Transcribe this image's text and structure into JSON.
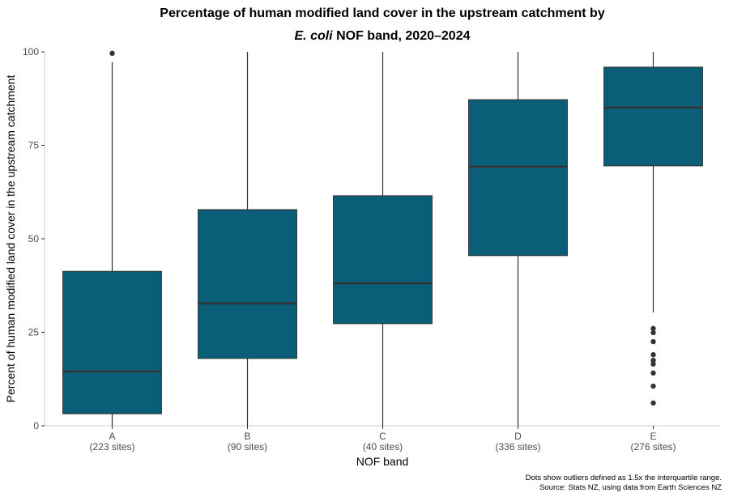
{
  "chart_data": {
    "type": "box",
    "title": [
      "Percentage of human modified land cover in the upstream catchment by",
      "E. coli",
      " NOF band, 2020–2024"
    ],
    "y_label": "Percent of human modified land cover in the upstream catchment",
    "x_label": "NOF band",
    "categories": [
      "A",
      "B",
      "C",
      "D",
      "E"
    ],
    "category_notes": [
      "(223 sites)",
      "(90 sites)",
      "(40 sites)",
      "(336 sites)",
      "(276 sites)"
    ],
    "boxes": [
      {
        "low": 0,
        "q1": 3.2,
        "median": 14.5,
        "q3": 41.3,
        "high": 97.2,
        "outliers": [
          99.6
        ]
      },
      {
        "low": 0,
        "q1": 18.0,
        "median": 32.7,
        "q3": 57.8,
        "high": 100,
        "outliers": []
      },
      {
        "low": 0,
        "q1": 27.3,
        "median": 38.1,
        "q3": 61.5,
        "high": 100,
        "outliers": []
      },
      {
        "low": 0,
        "q1": 45.5,
        "median": 69.3,
        "q3": 87.2,
        "high": 100,
        "outliers": []
      },
      {
        "low": 30.3,
        "q1": 69.5,
        "median": 85.1,
        "q3": 95.9,
        "high": 100,
        "outliers": [
          26.0,
          24.9,
          22.5,
          19.0,
          17.5,
          16.5,
          14.1,
          10.6,
          6.1
        ]
      }
    ],
    "color": "#0b5e78",
    "ylim": [
      0,
      100
    ],
    "yticks": [
      0,
      25,
      50,
      75,
      100
    ],
    "notes": [
      "Dots show outliers defined as 1.5x the interquartile range.",
      "Source: Stats NZ, using data from Earth Sciences NZ"
    ]
  }
}
